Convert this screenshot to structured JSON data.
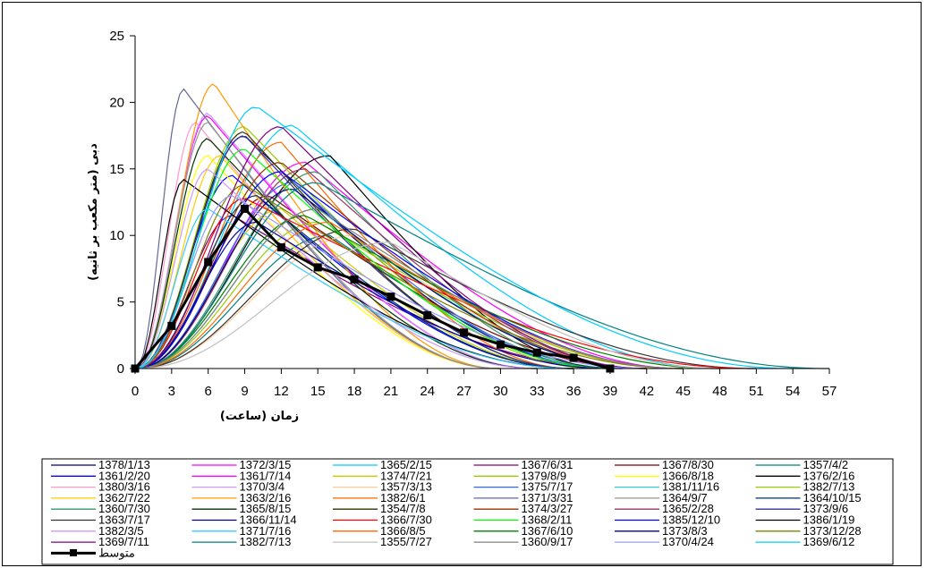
{
  "chart_data": {
    "type": "line",
    "xlabel": "زمان (ساعت)",
    "ylabel": "دبی (متر مکعب بر ثانیه)",
    "xlim": [
      0,
      57
    ],
    "ylim": [
      0,
      25
    ],
    "xticks": [
      "0",
      "3",
      "6",
      "9",
      "12",
      "15",
      "18",
      "21",
      "24",
      "27",
      "30",
      "33",
      "36",
      "39",
      "42",
      "45",
      "48",
      "51",
      "54",
      "57"
    ],
    "yticks": [
      "0",
      "5",
      "10",
      "15",
      "20",
      "25"
    ],
    "grid": false,
    "legend_position": "bottom",
    "mean_series": {
      "name": "متوسط",
      "color": "#000000",
      "x": [
        0,
        3,
        6,
        9,
        12,
        15,
        18,
        21,
        24,
        27,
        30,
        33,
        36,
        39
      ],
      "y": [
        0,
        3.2,
        8,
        12,
        9.1,
        7.6,
        6.7,
        5.4,
        4.0,
        2.7,
        1.8,
        1.2,
        0.8,
        0
      ]
    },
    "series": [
      {
        "name": "1378/1/13",
        "color": "#000080",
        "peak_x": 9,
        "peak_y": 17.5,
        "end_x": 39
      },
      {
        "name": "1372/3/15",
        "color": "#ff00ff",
        "peak_x": 14,
        "peak_y": 15.5,
        "end_x": 45
      },
      {
        "name": "1365/2/15",
        "color": "#00ccff",
        "peak_x": 13,
        "peak_y": 18.3,
        "end_x": 48
      },
      {
        "name": "1367/6/31",
        "color": "#800080",
        "peak_x": 8,
        "peak_y": 11.5,
        "end_x": 40
      },
      {
        "name": "1367/8/30",
        "color": "#800000",
        "peak_x": 11,
        "peak_y": 13,
        "end_x": 42
      },
      {
        "name": "1357/4/2",
        "color": "#008080",
        "peak_x": 16,
        "peak_y": 10,
        "end_x": 40
      },
      {
        "name": "1361/2/20",
        "color": "#0000ff",
        "peak_x": 8,
        "peak_y": 14.5,
        "end_x": 36
      },
      {
        "name": "1361/7/14",
        "color": "#ff00ff",
        "peak_x": 6,
        "peak_y": 19,
        "end_x": 33
      },
      {
        "name": "1374/7/21",
        "color": "#cccc00",
        "peak_x": 12,
        "peak_y": 12,
        "end_x": 36
      },
      {
        "name": "1379/8/9",
        "color": "#99cc00",
        "peak_x": 9,
        "peak_y": 18.2,
        "end_x": 38
      },
      {
        "name": "1366/8/18",
        "color": "#ffff00",
        "peak_x": 6,
        "peak_y": 16,
        "end_x": 30
      },
      {
        "name": "1376/2/16",
        "color": "#000000",
        "peak_x": 16,
        "peak_y": 16,
        "end_x": 39
      },
      {
        "name": "1380/3/16",
        "color": "#ff99cc",
        "peak_x": 5,
        "peak_y": 18.5,
        "end_x": 30
      },
      {
        "name": "1370/3/4",
        "color": "#cc99ff",
        "peak_x": 6,
        "peak_y": 19.2,
        "end_x": 33
      },
      {
        "name": "1357/3/13",
        "color": "#ffcc99",
        "peak_x": 18,
        "peak_y": 10,
        "end_x": 42
      },
      {
        "name": "1375/7/17",
        "color": "#3366ff",
        "peak_x": 13,
        "peak_y": 14,
        "end_x": 39
      },
      {
        "name": "1381/11/16",
        "color": "#33cccc",
        "peak_x": 15,
        "peak_y": 12,
        "end_x": 42
      },
      {
        "name": "1382/7/13",
        "color": "#99cc00",
        "peak_x": 15,
        "peak_y": 11,
        "end_x": 45
      },
      {
        "name": "1362/7/22",
        "color": "#ffcc00",
        "peak_x": 7,
        "peak_y": 16,
        "end_x": 30
      },
      {
        "name": "1363/2/16",
        "color": "#ff9900",
        "peak_x": 6.5,
        "peak_y": 21.4,
        "end_x": 30
      },
      {
        "name": "1382/6/1",
        "color": "#ff6600",
        "peak_x": 12,
        "peak_y": 17,
        "end_x": 36
      },
      {
        "name": "1371/3/31",
        "color": "#666699",
        "peak_x": 4,
        "peak_y": 21,
        "end_x": 30
      },
      {
        "name": "1364/9/7",
        "color": "#969696",
        "peak_x": 6,
        "peak_y": 18.5,
        "end_x": 30
      },
      {
        "name": "1364/10/15",
        "color": "#003366",
        "peak_x": 10,
        "peak_y": 13,
        "end_x": 36
      },
      {
        "name": "1360/7/30",
        "color": "#339966",
        "peak_x": 15,
        "peak_y": 14.8,
        "end_x": 39
      },
      {
        "name": "1365/8/15",
        "color": "#003300",
        "peak_x": 6,
        "peak_y": 17.3,
        "end_x": 33
      },
      {
        "name": "1354/7/8",
        "color": "#333300",
        "peak_x": 9,
        "peak_y": 17.8,
        "end_x": 36
      },
      {
        "name": "1374/3/27",
        "color": "#993300",
        "peak_x": 12,
        "peak_y": 15.5,
        "end_x": 42
      },
      {
        "name": "1365/2/28",
        "color": "#993366",
        "peak_x": 14,
        "peak_y": 15,
        "end_x": 42
      },
      {
        "name": "1373/9/6",
        "color": "#333399",
        "peak_x": 9,
        "peak_y": 17.5,
        "end_x": 36
      },
      {
        "name": "1363/7/17",
        "color": "#333333",
        "peak_x": 18,
        "peak_y": 10.5,
        "end_x": 51
      },
      {
        "name": "1366/11/14",
        "color": "#000080",
        "peak_x": 13,
        "peak_y": 13.5,
        "end_x": 42
      },
      {
        "name": "1366/7/30",
        "color": "#ff0000",
        "peak_x": 9,
        "peak_y": 12.8,
        "end_x": 51
      },
      {
        "name": "1368/2/11",
        "color": "#00ff00",
        "peak_x": 9,
        "peak_y": 16.5,
        "end_x": 39
      },
      {
        "name": "1385/12/10",
        "color": "#0000ff",
        "peak_x": 12,
        "peak_y": 14.8,
        "end_x": 45
      },
      {
        "name": "1386/1/19",
        "color": "#000000",
        "peak_x": 4,
        "peak_y": 14.2,
        "end_x": 36
      },
      {
        "name": "1382/3/5",
        "color": "#cc99ff",
        "peak_x": 6,
        "peak_y": 15,
        "end_x": 33
      },
      {
        "name": "1371/7/16",
        "color": "#33ccff",
        "peak_x": 6,
        "peak_y": 12,
        "end_x": 36
      },
      {
        "name": "1366/8/5",
        "color": "#ff6600",
        "peak_x": 16,
        "peak_y": 11,
        "end_x": 45
      },
      {
        "name": "1367/6/10",
        "color": "#008000",
        "peak_x": 14,
        "peak_y": 11.5,
        "end_x": 48
      },
      {
        "name": "1373/8/3",
        "color": "#000099",
        "peak_x": 10,
        "peak_y": 11,
        "end_x": 39
      },
      {
        "name": "1373/12/28",
        "color": "#808000",
        "peak_x": 9,
        "peak_y": 13.8,
        "end_x": 45
      },
      {
        "name": "1369/7/11",
        "color": "#800080",
        "peak_x": 12,
        "peak_y": 18.2,
        "end_x": 42
      },
      {
        "name": "1382/7/13",
        "color": "#008080",
        "peak_x": 15,
        "peak_y": 14,
        "end_x": 57
      },
      {
        "name": "1355/7/27",
        "color": "#c0c0c0",
        "peak_x": 21,
        "peak_y": 9.5,
        "end_x": 48
      },
      {
        "name": "1360/9/17",
        "color": "#808080",
        "peak_x": 15,
        "peak_y": 12,
        "end_x": 45
      },
      {
        "name": "1370/4/24",
        "color": "#9999ff",
        "peak_x": 8,
        "peak_y": 13,
        "end_x": 42
      },
      {
        "name": "1369/6/12",
        "color": "#00ccff",
        "peak_x": 10,
        "peak_y": 19.7,
        "end_x": 54
      }
    ]
  }
}
